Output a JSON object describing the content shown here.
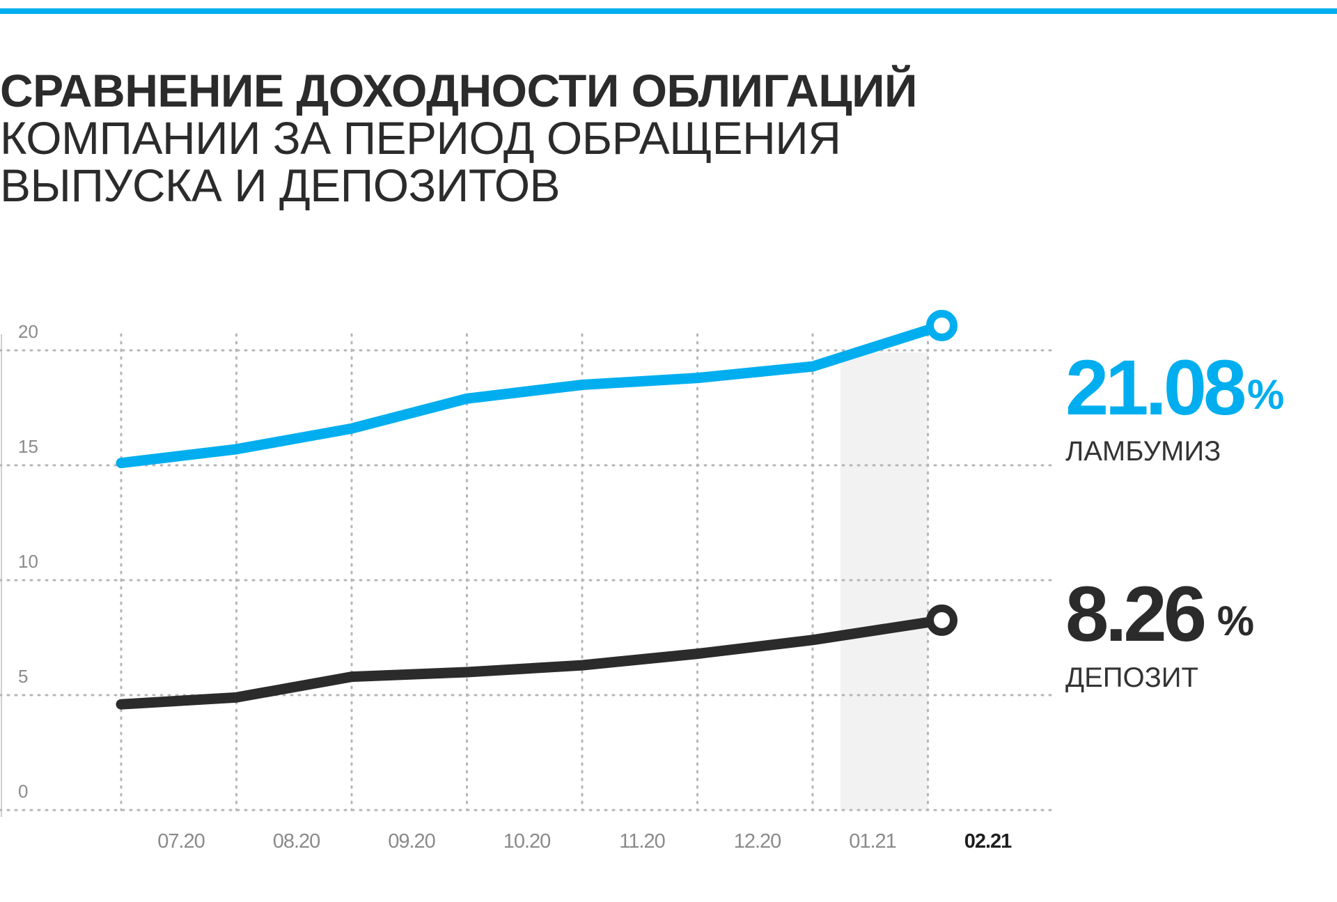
{
  "title": {
    "line1": "СРАВНЕНИЕ ДОХОДНОСТИ ОБЛИГАЦИЙ",
    "line2": "КОМПАНИИ ЗА ПЕРИОД ОБРАЩЕНИЯ",
    "line3": "ВЫПУСКА И ДЕПОЗИТОВ"
  },
  "colors": {
    "accent": "#00aeef",
    "dark": "#2b2b2b",
    "grid": "#b5b5b5",
    "highlight": "#f2f2f2"
  },
  "chart_data": {
    "type": "line",
    "categories": [
      "07.20",
      "08.20",
      "09.20",
      "10.20",
      "11.20",
      "12.20",
      "01.21",
      "02.21"
    ],
    "highlighted_category": "02.21",
    "y_ticks": [
      "0",
      "5",
      "10",
      "15",
      "20"
    ],
    "ylim": [
      0,
      20
    ],
    "grid": true,
    "series": [
      {
        "name": "ЛАМБУМИЗ",
        "color": "#00aeef",
        "values": [
          15.1,
          15.7,
          16.6,
          17.9,
          18.5,
          18.8,
          19.3,
          21.08
        ],
        "end_label": "21.08",
        "end_unit": "%"
      },
      {
        "name": "ДЕПОЗИТ",
        "color": "#2b2b2b",
        "values": [
          4.6,
          4.9,
          5.8,
          6.0,
          6.3,
          6.8,
          7.4,
          8.26
        ],
        "end_label": "8.26",
        "end_unit": "%"
      }
    ]
  }
}
